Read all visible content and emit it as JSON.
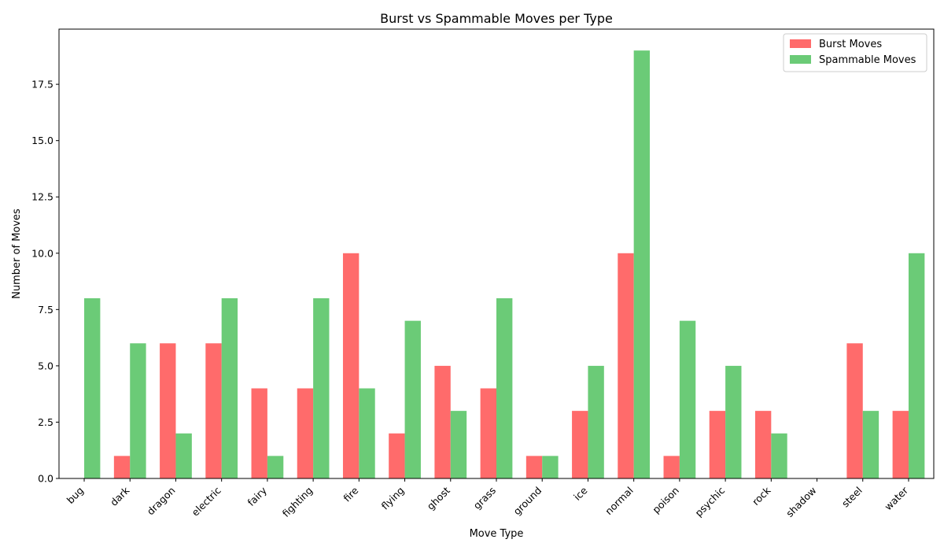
{
  "chart_data": {
    "type": "bar",
    "title": "Burst vs Spammable Moves per Type",
    "xlabel": "Move Type",
    "ylabel": "Number of Moves",
    "categories": [
      "bug",
      "dark",
      "dragon",
      "electric",
      "fairy",
      "fighting",
      "fire",
      "flying",
      "ghost",
      "grass",
      "ground",
      "ice",
      "normal",
      "poison",
      "psychic",
      "rock",
      "shadow",
      "steel",
      "water"
    ],
    "series": [
      {
        "name": "Burst Moves",
        "color": "#ff6b6b",
        "values": [
          0,
          1,
          6,
          6,
          4,
          4,
          10,
          2,
          5,
          4,
          1,
          3,
          10,
          1,
          3,
          3,
          0,
          6,
          3
        ]
      },
      {
        "name": "Spammable Moves",
        "color": "#6bcb77",
        "values": [
          8,
          6,
          2,
          8,
          1,
          8,
          4,
          7,
          3,
          8,
          1,
          5,
          19,
          7,
          5,
          2,
          0,
          3,
          10
        ]
      }
    ],
    "ylim": [
      0,
      19.95
    ],
    "yticks": [
      "0.0",
      "2.5",
      "5.0",
      "7.5",
      "10.0",
      "12.5",
      "15.0",
      "17.5"
    ],
    "grid": false,
    "legend_position": "top-right"
  }
}
